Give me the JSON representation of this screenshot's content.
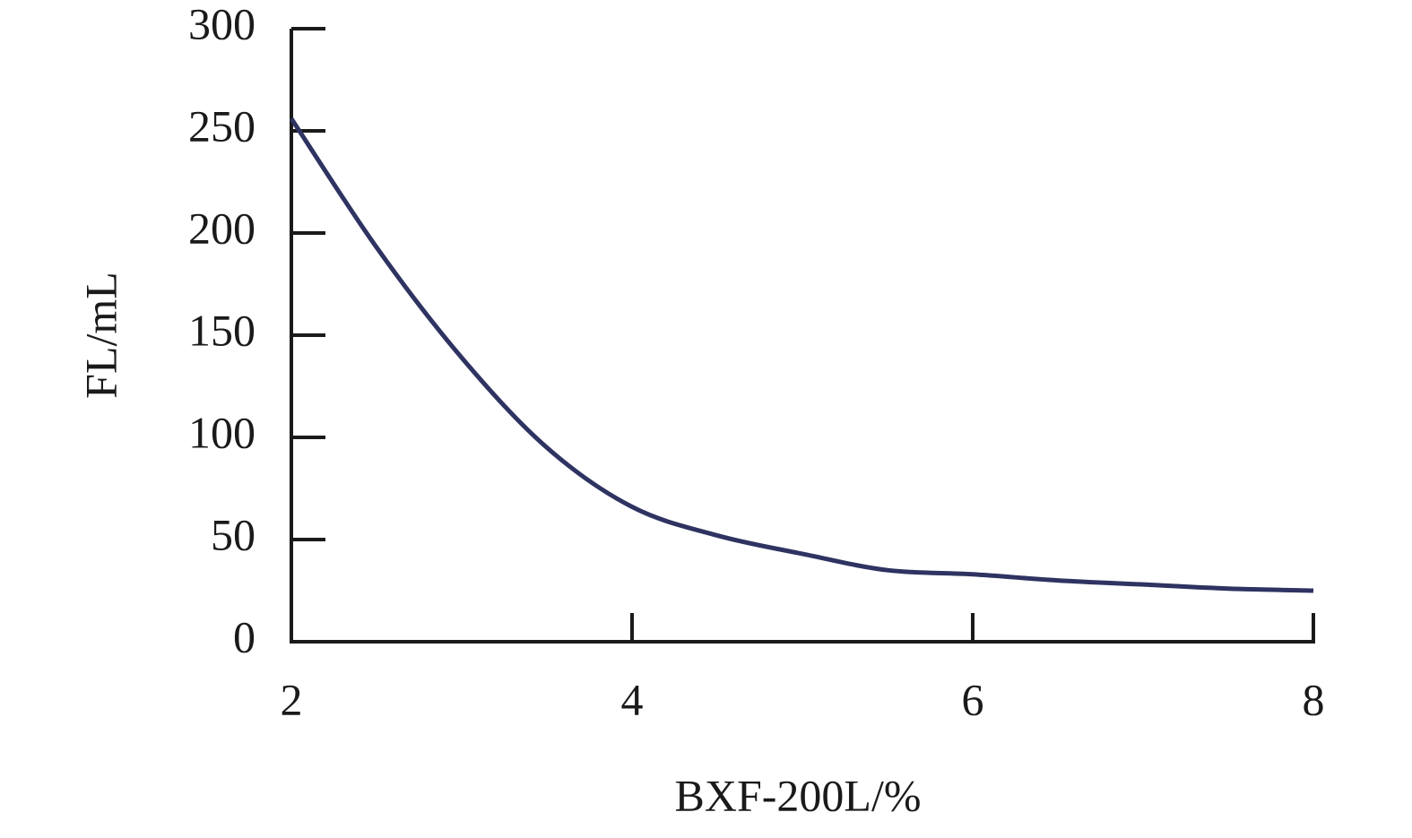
{
  "chart_data": {
    "type": "line",
    "x_label": "BXF-200L/%",
    "y_label": "FL/mL",
    "x": [
      2,
      2.5,
      3,
      3.5,
      4,
      4.5,
      5,
      5.5,
      6,
      6.5,
      7,
      7.5,
      8
    ],
    "series": [
      {
        "color": "#2e3361",
        "values": [
          256,
          193,
          139,
          95,
          66,
          52,
          43,
          35,
          33,
          30,
          28,
          26,
          25
        ]
      }
    ],
    "xlim": [
      2,
      8
    ],
    "xticks": [
      2,
      4,
      6,
      8
    ],
    "ylim": [
      0,
      300
    ],
    "yticks": [
      0,
      50,
      100,
      150,
      200,
      250,
      300
    ]
  }
}
